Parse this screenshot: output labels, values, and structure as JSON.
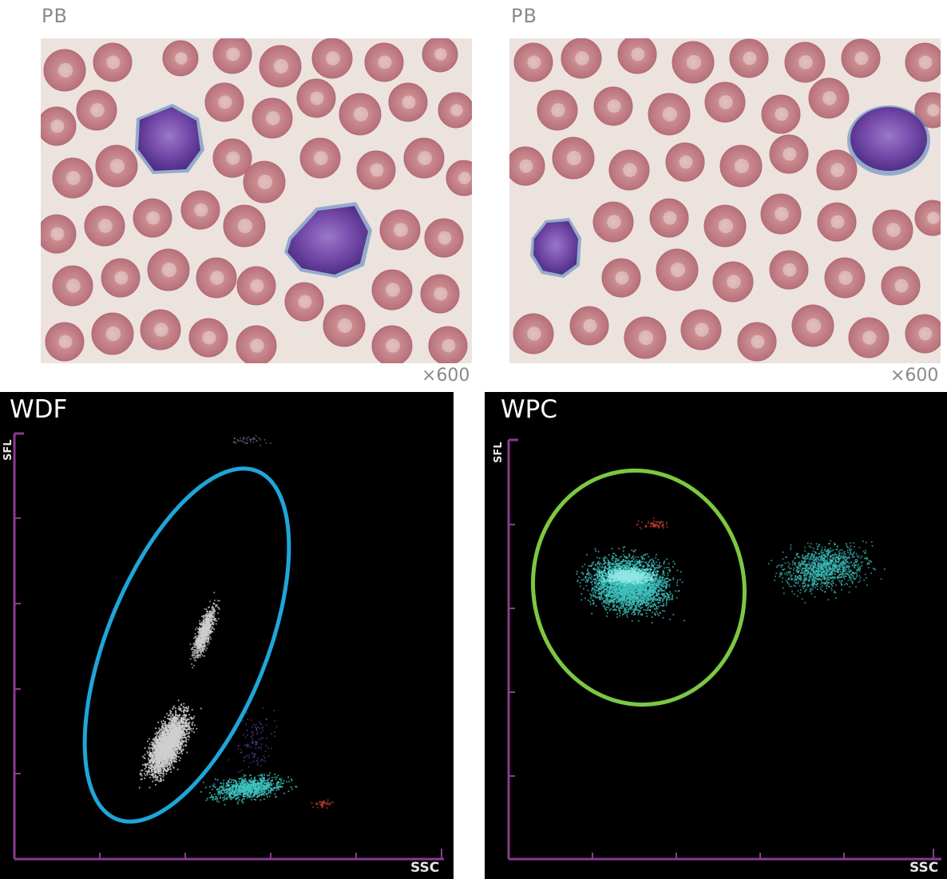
{
  "panels": [
    {
      "label": "PB",
      "magnification": "×600"
    },
    {
      "label": "PB",
      "magnification": "×600"
    }
  ],
  "scattergrams": [
    {
      "title": "WDF",
      "y_axis": "SFL",
      "x_axis": "SSC",
      "gate_color": "#1fa6d9"
    },
    {
      "title": "WPC",
      "y_axis": "SFL",
      "x_axis": "SSC",
      "gate_color": "#7cc842"
    }
  ],
  "colors": {
    "axis": "#8a3b8f",
    "rbc": "#c47a80",
    "blast": "#6a3ea0",
    "dots_white": "#cfcfcf",
    "dots_cyan": "#3fc4c0",
    "dots_red": "#b03a30"
  }
}
